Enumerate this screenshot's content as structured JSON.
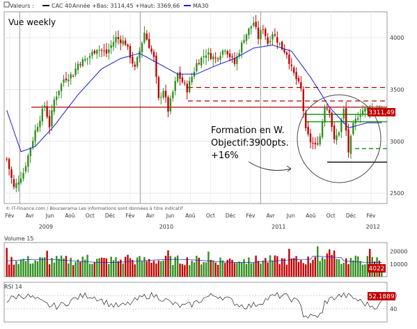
{
  "header": {
    "valeurs_label": "Valeurs :",
    "series_label": "CAC 40",
    "info_text": "Année +Bas: 3114,45 +Haut: 3369,66",
    "ma_label": "MA30"
  },
  "annotations": {
    "vue_weekly": "Vue weekly",
    "formation_line1": "Formation en W.",
    "formation_line2": "Objectif:3900pts.",
    "formation_line3": "+16%",
    "last_price": "3311,49",
    "copyright": "© IT-Finance.com / Bourserama Les informations sont données à titre indicatif"
  },
  "colors": {
    "up": "#2f8f1f",
    "down": "#c00000",
    "ma": "#1a1ac8",
    "resistance": "#b00000",
    "support_green": "#1f9a1f",
    "black_line": "#000000",
    "price_tag_bg": "#c00000",
    "rsi_tag_bg": "#c00000",
    "volume_tag_bg": "#c00000"
  },
  "chart_data": [
    {
      "name": "price",
      "type": "candlestick",
      "title": "CAC 40",
      "ylim": [
        2400,
        4250
      ],
      "yticks": [
        2500,
        3000,
        3500,
        4000
      ],
      "x_months": [
        "Fév",
        "Avr",
        "Jun",
        "Aoû",
        "Oct",
        "Déc",
        "Fév",
        "Avr",
        "Jun",
        "Aoû",
        "Oct",
        "Déc",
        "Fév",
        "Avr",
        "Jun",
        "Aoû",
        "Oct",
        "Déc",
        "Fév"
      ],
      "x_years": [
        "2009",
        "2010",
        "2011",
        "2012"
      ],
      "weeks": 159,
      "anchors": [
        [
          0,
          2830
        ],
        [
          3,
          2550
        ],
        [
          7,
          2700
        ],
        [
          12,
          3100
        ],
        [
          16,
          3350
        ],
        [
          18,
          3150
        ],
        [
          20,
          3400
        ],
        [
          24,
          3600
        ],
        [
          28,
          3650
        ],
        [
          30,
          3750
        ],
        [
          34,
          3800
        ],
        [
          38,
          3900
        ],
        [
          42,
          3850
        ],
        [
          46,
          4000
        ],
        [
          50,
          3950
        ],
        [
          54,
          3700
        ],
        [
          58,
          4050
        ],
        [
          62,
          3800
        ],
        [
          64,
          3400
        ],
        [
          66,
          3500
        ],
        [
          68,
          3300
        ],
        [
          72,
          3650
        ],
        [
          76,
          3500
        ],
        [
          80,
          3750
        ],
        [
          84,
          3850
        ],
        [
          88,
          3800
        ],
        [
          92,
          3900
        ],
        [
          96,
          3750
        ],
        [
          100,
          4000
        ],
        [
          104,
          4150
        ],
        [
          106,
          4000
        ],
        [
          108,
          4100
        ],
        [
          110,
          3950
        ],
        [
          112,
          4050
        ],
        [
          116,
          3900
        ],
        [
          118,
          3850
        ],
        [
          120,
          3700
        ],
        [
          122,
          3600
        ],
        [
          124,
          3500
        ],
        [
          126,
          3100
        ],
        [
          128,
          3000
        ],
        [
          130,
          2950
        ],
        [
          132,
          3050
        ],
        [
          134,
          3350
        ],
        [
          136,
          3300
        ],
        [
          138,
          3000
        ],
        [
          140,
          3100
        ],
        [
          142,
          3300
        ],
        [
          144,
          2900
        ],
        [
          146,
          3150
        ],
        [
          148,
          3250
        ],
        [
          150,
          3300
        ],
        [
          152,
          3311
        ]
      ],
      "ma30_anchors": [
        [
          0,
          3300
        ],
        [
          6,
          2900
        ],
        [
          12,
          2950
        ],
        [
          20,
          3150
        ],
        [
          30,
          3450
        ],
        [
          40,
          3700
        ],
        [
          48,
          3800
        ],
        [
          56,
          3850
        ],
        [
          64,
          3750
        ],
        [
          72,
          3650
        ],
        [
          80,
          3650
        ],
        [
          88,
          3730
        ],
        [
          96,
          3800
        ],
        [
          104,
          3900
        ],
        [
          112,
          3930
        ],
        [
          120,
          3870
        ],
        [
          128,
          3620
        ],
        [
          136,
          3330
        ],
        [
          144,
          3130
        ],
        [
          152,
          3180
        ]
      ],
      "resistance_solid": 3330,
      "resistance_dashed": [
        3520,
        3390
      ],
      "green_levels": [
        3190,
        3260,
        2930
      ],
      "black_level": 2800,
      "last_price": 3311.49
    },
    {
      "name": "volume",
      "type": "bar",
      "title": "Volume 15",
      "yticks": [
        10000,
        20000
      ],
      "last_value": 4022,
      "ylim": [
        0,
        27000
      ]
    },
    {
      "name": "rsi",
      "type": "line",
      "title": "RSI 14",
      "ylim": [
        20,
        80
      ],
      "yticks": [
        40,
        60
      ],
      "last_value": 52.1889
    }
  ]
}
